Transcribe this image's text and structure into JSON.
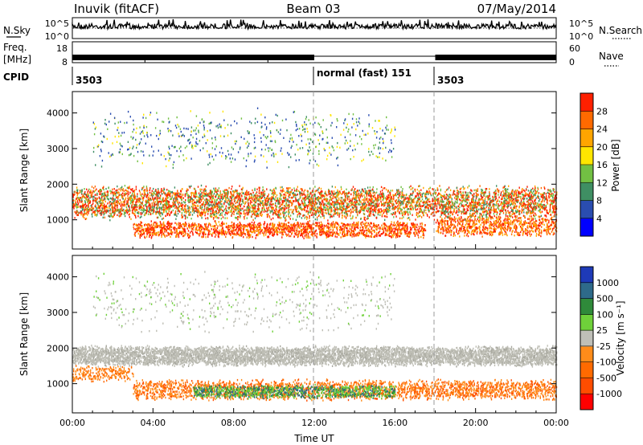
{
  "header": {
    "station": "Inuvik (fitACF)",
    "beam": "Beam 03",
    "date": "07/May/2014"
  },
  "labels": {
    "nsky": "N.Sky",
    "nsearch": "N.Search",
    "freq": "Freq.",
    "freq_unit": "[MHz]",
    "nave": "Nave",
    "cpid": "CPID",
    "cpid_segments": [
      "3503",
      "normal (fast) 151",
      "3503"
    ],
    "y_axis_label": "Slant Range [km]",
    "x_axis_label": "Time UT",
    "power_label": "Power [dB]",
    "velocity_label": "Velocity [m s⁻¹]"
  },
  "colors": {
    "power_scale": [
      "#0000ff",
      "#2a4db0",
      "#3f8f63",
      "#72c043",
      "#ffe600",
      "#ffa500",
      "#ff6a00",
      "#ff2000"
    ],
    "velocity_scale": [
      "#1e3ab8",
      "#2e6a8a",
      "#2f8a3a",
      "#6fd13a",
      "#bfbfb8",
      "#ff8c1a",
      "#ff6a00",
      "#ff4d00",
      "#ff0000"
    ],
    "gray_scatter": "#bdbdb4"
  },
  "chart_data": [
    {
      "type": "line",
      "name": "noise_panel",
      "y_left_ticks": [
        "10^5",
        "10^0"
      ],
      "y_right_ticks": [
        "10^5",
        "10^0"
      ],
      "series": [
        {
          "name": "N.Sky",
          "level": "10^5"
        },
        {
          "name": "N.Search",
          "level": "10^5"
        }
      ]
    },
    {
      "type": "line",
      "name": "freq_panel",
      "y_left_ticks": [
        "18",
        "8"
      ],
      "y_right_ticks": [
        "60",
        "0"
      ],
      "x_range_hours": [
        0,
        24
      ],
      "freq_mode_segments": [
        [
          0,
          12
        ],
        [
          18,
          24
        ]
      ]
    },
    {
      "type": "heatmap",
      "name": "power_panel",
      "xlabel": "",
      "ylabel": "Slant Range [km]",
      "x_range_hours": [
        0,
        24
      ],
      "ylim": [
        180,
        4600
      ],
      "y_ticks": [
        1000,
        2000,
        3000,
        4000
      ],
      "colorbar_label": "Power [dB]",
      "colorbar_ticks": [
        4,
        8,
        12,
        16,
        20,
        24,
        28
      ],
      "features": [
        {
          "label": "main_band",
          "x_range": [
            0,
            24
          ],
          "y_center": 1500,
          "y_span": 500
        },
        {
          "label": "lower_band",
          "x_range": [
            3,
            17.5
          ],
          "y_center": 750,
          "y_span": 250
        },
        {
          "label": "lower_band_late",
          "x_range": [
            18,
            24
          ],
          "y_center": 850,
          "y_span": 300
        },
        {
          "label": "upper_scatter",
          "x_range": [
            1,
            16
          ],
          "y_center": 3300,
          "y_span": 900
        }
      ]
    },
    {
      "type": "heatmap",
      "name": "velocity_panel",
      "xlabel": "Time UT",
      "ylabel": "Slant Range [km]",
      "x_range_hours": [
        0,
        24
      ],
      "x_ticks": [
        "00:00",
        "04:00",
        "08:00",
        "12:00",
        "16:00",
        "20:00",
        "00:00"
      ],
      "ylim": [
        180,
        4600
      ],
      "y_ticks": [
        1000,
        2000,
        3000,
        4000
      ],
      "colorbar_label": "Velocity [m s⁻¹]",
      "colorbar_ticks": [
        1000,
        500,
        100,
        25,
        -25,
        -100,
        -500,
        -1000
      ],
      "features": [
        {
          "label": "main_band_gray",
          "x_range": [
            0,
            24
          ],
          "y_center": 1800,
          "y_span": 300
        },
        {
          "label": "lower_band_orange",
          "x_range": [
            3,
            24
          ],
          "y_center": 850,
          "y_span": 300
        },
        {
          "label": "lower_band_green",
          "x_range": [
            6,
            16
          ],
          "y_center": 800,
          "y_span": 200
        }
      ]
    }
  ]
}
